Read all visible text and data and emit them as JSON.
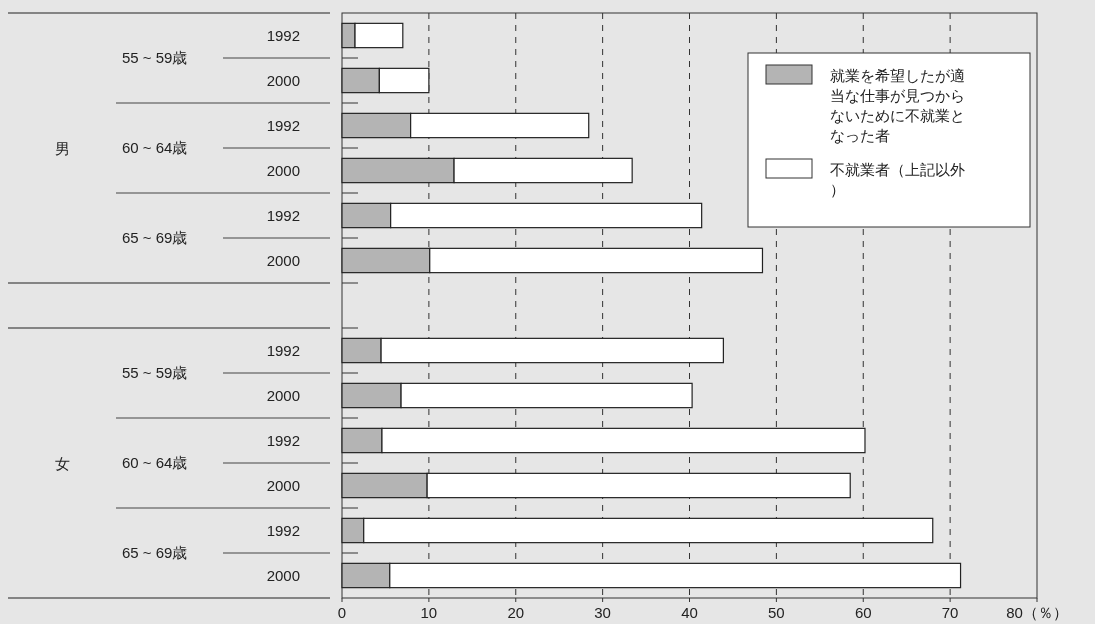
{
  "chart_data": {
    "type": "bar",
    "orientation": "horizontal",
    "stacked": true,
    "categories": [
      "1992",
      "2000",
      "1992",
      "2000",
      "1992",
      "2000",
      null,
      "1992",
      "2000",
      "1992",
      "2000",
      "1992",
      "2000"
    ],
    "series": [
      {
        "name": "就業を希望したが適当な仕事が見つからないために不就業となった者",
        "color": "#b4b4b4",
        "values": [
          1.5,
          4.3,
          7.9,
          12.9,
          5.6,
          10.1,
          null,
          4.5,
          6.8,
          4.6,
          9.8,
          2.5,
          5.5
        ]
      },
      {
        "name": "不就業者（上記以外）",
        "color": "#ffffff",
        "values": [
          5.5,
          5.7,
          20.5,
          20.5,
          35.8,
          38.3,
          null,
          39.4,
          33.5,
          55.6,
          48.7,
          65.5,
          65.7
        ]
      }
    ],
    "annotations": [
      "男",
      "55 ~ 59歳",
      "60 ~ 64歳",
      "65 ~ 69歳",
      "女",
      "55 ~ 59歳",
      "60 ~ 64歳",
      "65 ~ 69歳"
    ],
    "xlim": [
      0,
      80
    ],
    "xticks": [
      0,
      10,
      20,
      30,
      40,
      50,
      60,
      70,
      {
        "value": 80,
        "label": "80（％）"
      }
    ],
    "grid": "x",
    "legend": "top right"
  }
}
